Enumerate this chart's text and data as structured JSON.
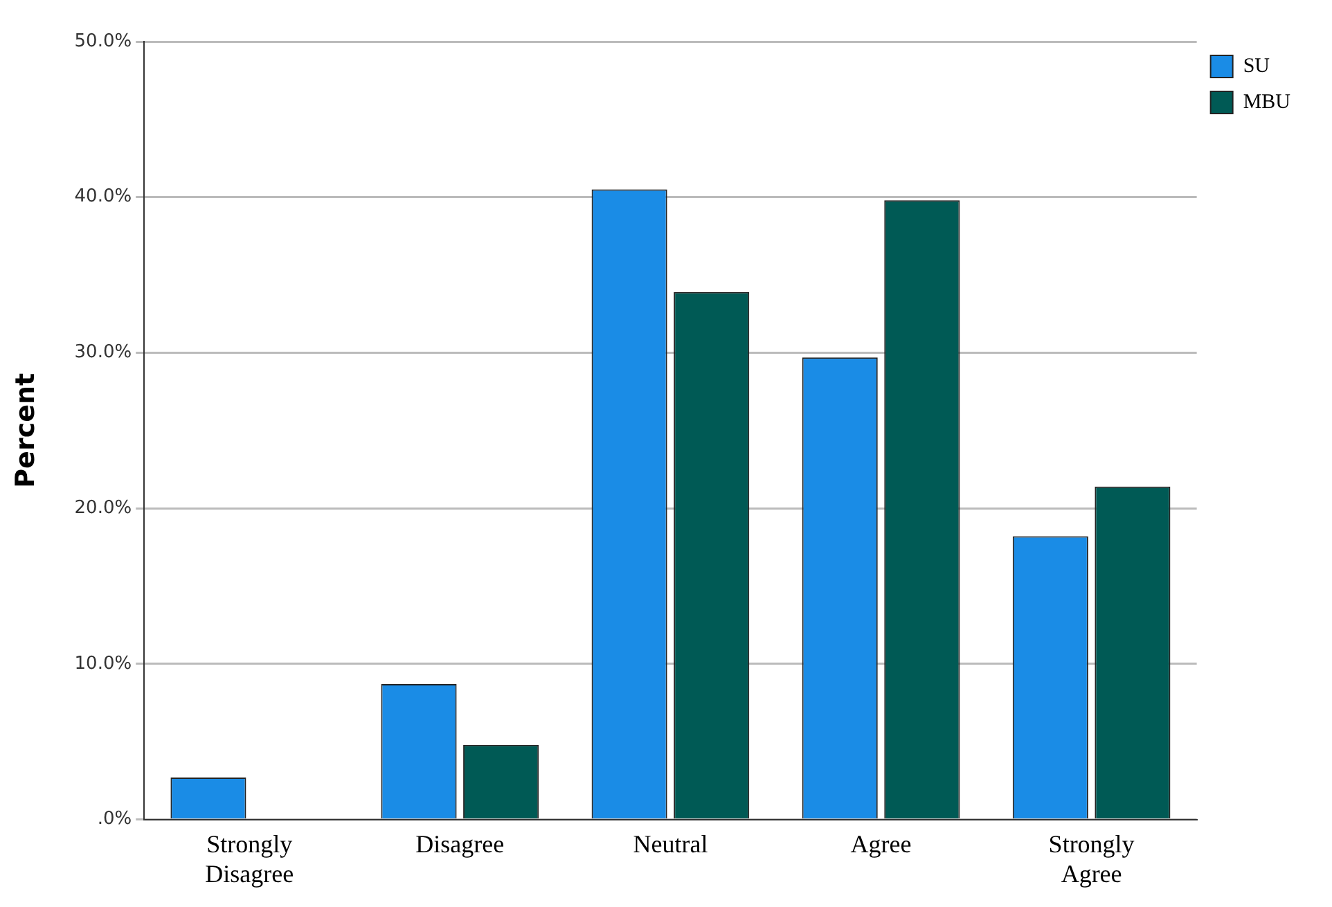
{
  "chart_data": {
    "type": "bar",
    "ylabel": "Percent",
    "categories": [
      "Strongly Disagree",
      "Disagree",
      "Neutral",
      "Agree",
      "Strongly Agree"
    ],
    "series": [
      {
        "name": "SU",
        "color": "#1a8ce6",
        "values": [
          2.7,
          8.7,
          40.5,
          29.7,
          18.2
        ]
      },
      {
        "name": "MBU",
        "color": "#005a55",
        "values": [
          0,
          4.8,
          33.9,
          39.8,
          21.4
        ]
      }
    ],
    "ylim": [
      0,
      50
    ],
    "yticks": [
      {
        "value": 0,
        "label": ".0%"
      },
      {
        "value": 10,
        "label": "10.0%"
      },
      {
        "value": 20,
        "label": "20.0%"
      },
      {
        "value": 30,
        "label": "30.0%"
      },
      {
        "value": 40,
        "label": "40.0%"
      },
      {
        "value": 50,
        "label": "50.0%"
      }
    ],
    "grid": "y",
    "legend": "top right"
  }
}
